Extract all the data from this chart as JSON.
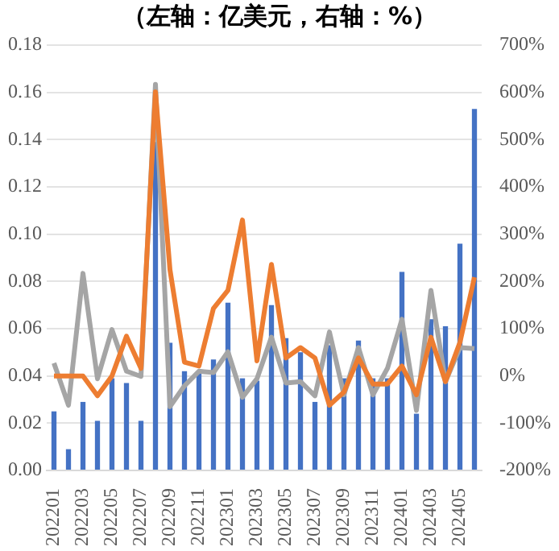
{
  "chart_data": {
    "type": "bar",
    "title": "（左轴：亿美元，右轴：%）",
    "categories": [
      "202201",
      null,
      "202203",
      null,
      "202205",
      null,
      "202207",
      null,
      "202209",
      null,
      "202211",
      null,
      "202301",
      null,
      "202303",
      null,
      "202305",
      null,
      "202307",
      null,
      "202309",
      null,
      "202311",
      null,
      "202401",
      null,
      "202403",
      null,
      "202405",
      null
    ],
    "series": [
      {
        "color": "#4472c4",
        "values": [
          0.025,
          0.009,
          0.029,
          0.021,
          0.039,
          0.037,
          0.021,
          0.139,
          0.054,
          0.042,
          0.042,
          0.047,
          0.071,
          0.039,
          0.038,
          0.07,
          0.056,
          0.05,
          0.029,
          0.053,
          0.039,
          0.055,
          0.039,
          0.039,
          0.084,
          0.024,
          0.064,
          0.061,
          0.096,
          0.153
        ]
      },
      {
        "type": "line",
        "axis": "y2",
        "color": "#ed7d31",
        "values": [
          0,
          0,
          0,
          -42,
          0,
          84,
          16,
          601,
          225,
          29,
          21,
          143,
          181,
          330,
          32,
          236,
          38,
          60,
          38,
          -62,
          -34,
          38,
          -17,
          -17,
          21,
          -40,
          82,
          -12,
          71,
          209
        ]
      },
      {
        "type": "line",
        "axis": "y2",
        "color": "#a5a5a5",
        "values": [
          27,
          -62,
          217,
          -6,
          98,
          10,
          -1,
          617,
          -65,
          -21,
          10,
          7,
          51,
          -45,
          -6,
          82,
          -15,
          -12,
          -42,
          93,
          -40,
          60,
          -40,
          16,
          120,
          -73,
          181,
          -12,
          60,
          58
        ]
      }
    ],
    "ylim": [
      0,
      0.18
    ],
    "yticks": [
      {
        "value": 0,
        "label": "0.00"
      },
      {
        "value": 0.02,
        "label": "0.02"
      },
      {
        "value": 0.04,
        "label": "0.04"
      },
      {
        "value": 0.06,
        "label": "0.06"
      },
      {
        "value": 0.08,
        "label": "0.08"
      },
      {
        "value": 0.1,
        "label": "0.10"
      },
      {
        "value": 0.12,
        "label": "0.12"
      },
      {
        "value": 0.14,
        "label": "0.14"
      },
      {
        "value": 0.16,
        "label": "0.16"
      },
      {
        "value": 0.18,
        "label": "0.18"
      }
    ],
    "y2lim": [
      -200,
      700
    ],
    "y2ticks": [
      {
        "value": -200,
        "label": "-200%"
      },
      {
        "value": -100,
        "label": "-100%"
      },
      {
        "value": 0,
        "label": "0%"
      },
      {
        "value": 100,
        "label": "100%"
      },
      {
        "value": 200,
        "label": "200%"
      },
      {
        "value": 300,
        "label": "300%"
      },
      {
        "value": 400,
        "label": "400%"
      },
      {
        "value": 500,
        "label": "500%"
      },
      {
        "value": 600,
        "label": "600%"
      },
      {
        "value": 700,
        "label": "700%"
      }
    ],
    "grid": "y",
    "legend": false,
    "marker": "none",
    "line_style": "solid"
  }
}
